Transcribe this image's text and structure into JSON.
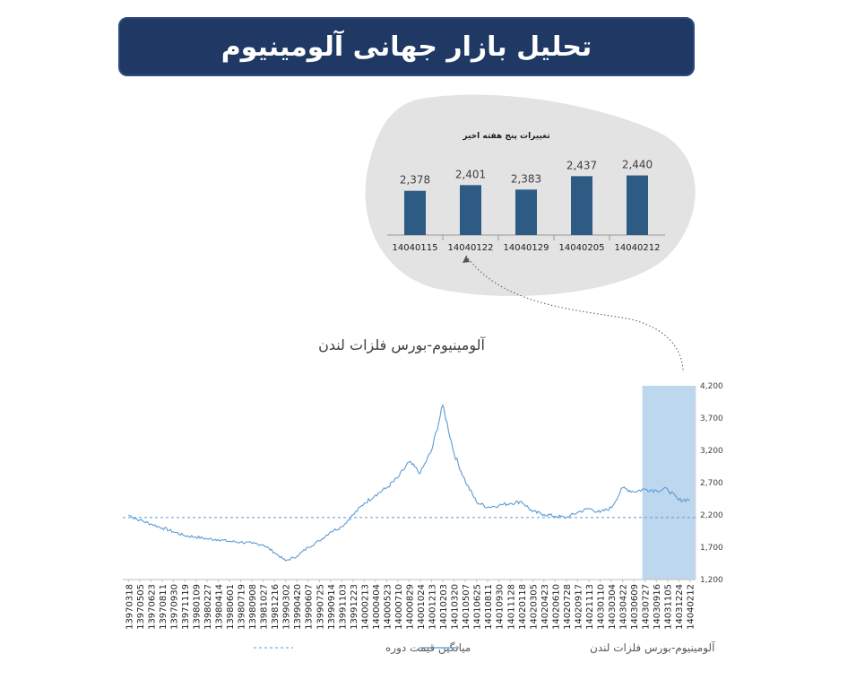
{
  "page_title": "تحلیل بازار جهانی آلومینیوم",
  "colors": {
    "banner_bg": "#1f3864",
    "bar_fill": "#2e5b84",
    "line": "#5b9bd5",
    "highlight": "#bdd7ee",
    "blob": "#e3e3e3"
  },
  "chart_data": [
    {
      "type": "bar",
      "title": "تغییرات پنج هفته اخیر",
      "categories": [
        "14040115",
        "14040122",
        "14040129",
        "14040205",
        "14040212"
      ],
      "values": [
        2378,
        2401,
        2383,
        2437,
        2440
      ],
      "value_labels": [
        "2,378",
        "2,401",
        "2,383",
        "2,437",
        "2,440"
      ],
      "ylim": [
        2200,
        2460
      ]
    },
    {
      "type": "line",
      "title": "آلومینیوم-بورس فلزات لندن",
      "x_tick_labels": [
        "13970318",
        "13970505",
        "13970623",
        "13970811",
        "13970930",
        "13971119",
        "13980109",
        "13980227",
        "13980414",
        "13980601",
        "13980719",
        "13980908",
        "13981027",
        "13981216",
        "13990302",
        "13990420",
        "13990607",
        "13990725",
        "13990914",
        "13991103",
        "13991223",
        "14000213",
        "14000404",
        "14000523",
        "14000710",
        "14000829",
        "14001024",
        "14001213",
        "14010203",
        "14010320",
        "14010507",
        "14010625",
        "14010811",
        "14010930",
        "14011128",
        "14020118",
        "14020305",
        "14020423",
        "14020610",
        "14020728",
        "14020917",
        "14021113",
        "14030110",
        "14030304",
        "14030422",
        "14030609",
        "14030727",
        "14030916",
        "14031105",
        "14031224",
        "14040212"
      ],
      "y_ticks": [
        "1,200",
        "1,700",
        "2,200",
        "2,700",
        "3,200",
        "3,700",
        "4,200"
      ],
      "ylim": [
        1200,
        4200
      ],
      "series": [
        {
          "name": "آلومینیوم-بورس فلزات لندن",
          "style": "solid",
          "values": [
            2200,
            2120,
            2060,
            2000,
            1940,
            1880,
            1860,
            1830,
            1820,
            1790,
            1780,
            1760,
            1740,
            1620,
            1490,
            1560,
            1700,
            1800,
            1940,
            2020,
            2200,
            2380,
            2510,
            2620,
            2780,
            3020,
            2850,
            3200,
            3900,
            3150,
            2720,
            2400,
            2320,
            2350,
            2380,
            2410,
            2250,
            2210,
            2180,
            2160,
            2240,
            2300,
            2240,
            2310,
            2620,
            2560,
            2600,
            2580,
            2600,
            2430,
            2440
          ]
        },
        {
          "name": "میانگین قیمت دوره",
          "style": "dashed",
          "values": [
            2160,
            2160
          ]
        }
      ],
      "highlight_region_from_label": "14030727",
      "legend_position": "bottom"
    }
  ],
  "legend": {
    "item_line": "آلومینیوم-بورس فلزات لندن",
    "item_avg": "میانگین قیمت دوره"
  }
}
